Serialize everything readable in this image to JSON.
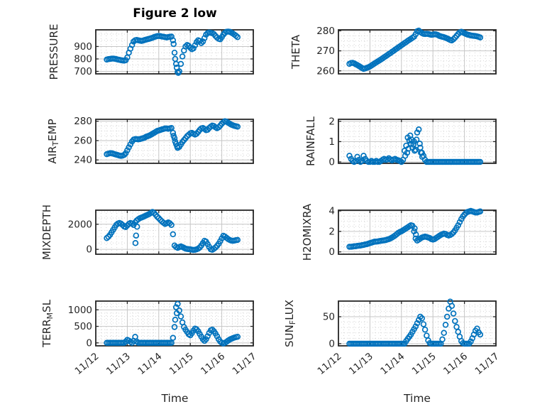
{
  "figure": {
    "title": "Figure 2 low",
    "xlabel": "Time",
    "marker_color": "#0072BD",
    "axis_color": "#262626",
    "grid_major_color": "#c6c6c6",
    "grid_minor_color": "#d6d6d6",
    "background": "#ffffff"
  },
  "x_axis": {
    "ticks": [
      "11/12",
      "11/13",
      "11/14",
      "11/15",
      "11/16",
      "11/17"
    ],
    "lim": [
      12,
      17
    ],
    "minor_per_day": 6
  },
  "x_base": [
    12.35,
    12.4,
    12.45,
    12.5,
    12.55,
    12.6,
    12.65,
    12.7,
    12.75,
    12.8,
    12.85,
    12.9,
    12.95,
    13,
    13.05,
    13.1,
    13.15,
    13.2,
    13.25,
    13.3,
    13.35,
    13.4,
    13.45,
    13.5,
    13.55,
    13.6,
    13.65,
    13.7,
    13.75,
    13.8,
    13.85,
    13.9,
    13.95,
    14,
    14.05,
    14.1,
    14.15,
    14.2,
    14.25,
    14.3,
    14.35,
    14.4,
    14.45,
    14.5,
    14.55,
    14.6,
    14.65,
    14.7,
    14.75,
    14.8,
    14.85,
    14.9,
    14.95,
    15,
    15.05,
    15.1,
    15.15,
    15.2,
    15.25,
    15.3,
    15.35,
    15.4,
    15.45,
    15.5,
    15.55,
    15.6,
    15.65,
    15.7,
    15.75,
    15.8,
    15.85,
    15.9,
    15.95,
    16,
    16.05,
    16.1,
    16.15,
    16.2,
    16.25,
    16.3,
    16.35,
    16.4,
    16.45,
    16.5
  ],
  "chart_data": [
    {
      "id": "pressure",
      "type": "scatter",
      "row": 0,
      "col": 0,
      "ylabel": "PRESSURE",
      "ylabel_parts": [
        {
          "t": "PRESSURE",
          "sub": false
        }
      ],
      "yticks": [
        700,
        800,
        900
      ],
      "ylim": [
        680,
        1034
      ],
      "y_minor_step": 50,
      "x": "base",
      "y": [
        795,
        798,
        800,
        802,
        803,
        801,
        798,
        795,
        793,
        790,
        788,
        786,
        790,
        812,
        850,
        882,
        912,
        940,
        950,
        953,
        950,
        947,
        945,
        948,
        952,
        956,
        959,
        962,
        966,
        970,
        975,
        980,
        983,
        985,
        983,
        980,
        978,
        975,
        973,
        975,
        978,
        980,
        950,
        850,
        760,
        695,
        700,
        760,
        820,
        868,
        900,
        912,
        905,
        890,
        878,
        885,
        910,
        935,
        950,
        945,
        928,
        940,
        968,
        995,
        1008,
        1012,
        1010,
        1007,
        1000,
        985,
        972,
        962,
        958,
        975,
        995,
        1010,
        1018,
        1020,
        1018,
        1012,
        1005,
        996,
        986,
        976
      ],
      "extra": [
        [
          14.47,
          920
        ],
        [
          14.52,
          800
        ],
        [
          14.57,
          730
        ],
        [
          14.62,
          688
        ]
      ]
    },
    {
      "id": "theta",
      "type": "scatter",
      "row": 0,
      "col": 1,
      "ylabel": "THETA",
      "ylabel_parts": [
        {
          "t": "THETA",
          "sub": false
        }
      ],
      "yticks": [
        260,
        270,
        280
      ],
      "ylim": [
        258.5,
        280.5
      ],
      "y_minor_step": 2.5,
      "x": "base",
      "y": [
        263.5,
        263.9,
        264,
        263.7,
        263.3,
        262.9,
        262.4,
        261.9,
        261.4,
        261,
        261.2,
        261.5,
        261.8,
        262.2,
        262.7,
        263.2,
        263.7,
        264.2,
        264.7,
        265.2,
        265.7,
        266.2,
        266.8,
        267.3,
        267.8,
        268.4,
        268.9,
        269.5,
        270,
        270.6,
        271.1,
        271.7,
        272.2,
        272.8,
        273.3,
        273.9,
        274.4,
        275,
        275.5,
        276,
        276.5,
        277.1,
        278.3,
        279.8,
        280.1,
        279.4,
        278.9,
        278.5,
        278.4,
        278.5,
        278.4,
        278.2,
        278,
        278.1,
        278.3,
        278.2,
        277.9,
        277.5,
        277.2,
        277,
        276.8,
        276.5,
        276.2,
        275.8,
        275.4,
        275.2,
        275.8,
        276.6,
        277.5,
        278.4,
        279.2,
        279.5,
        279.2,
        278.8,
        278.4,
        278.1,
        277.9,
        277.7,
        277.6,
        277.5,
        277.4,
        277.2,
        277,
        276.7
      ],
      "extra": []
    },
    {
      "id": "airtemp",
      "type": "scatter",
      "row": 1,
      "col": 0,
      "ylabel": "AIR_TEMP",
      "ylabel_parts": [
        {
          "t": "AIR",
          "sub": false
        },
        {
          "t": "T",
          "sub": true
        },
        {
          "t": "EMP",
          "sub": false
        }
      ],
      "yticks": [
        240,
        260,
        280
      ],
      "ylim": [
        236.5,
        282
      ],
      "y_minor_step": 5,
      "x": "base",
      "y": [
        246,
        246.5,
        247,
        247,
        246.5,
        246,
        245.5,
        245,
        244.5,
        244.2,
        244.5,
        245.2,
        247,
        250,
        253,
        256,
        259,
        261,
        261.5,
        261.5,
        261.2,
        261.5,
        262,
        262.5,
        263,
        264,
        264.5,
        265.2,
        266,
        267,
        268,
        269,
        270,
        270.5,
        271,
        271.5,
        272,
        272.5,
        272.5,
        272.2,
        272.5,
        273,
        268,
        262.5,
        256.5,
        252.5,
        253.5,
        256,
        258.5,
        260.5,
        262.5,
        264.5,
        266,
        267.5,
        268,
        267,
        266.2,
        267,
        269,
        271,
        272.5,
        273,
        272,
        270.8,
        271.2,
        273,
        274.5,
        275.5,
        275,
        273.8,
        272.8,
        273.8,
        275.5,
        277.5,
        279,
        280,
        279.5,
        278.5,
        277.5,
        276.5,
        275.8,
        275.2,
        274.8,
        274.4
      ],
      "extra": [
        [
          14.47,
          265
        ],
        [
          14.52,
          259
        ],
        [
          14.58,
          254
        ]
      ]
    },
    {
      "id": "rainfall",
      "type": "scatter",
      "row": 1,
      "col": 1,
      "ylabel": "RAINFALL",
      "ylabel_parts": [
        {
          "t": "RAINFALL",
          "sub": false
        }
      ],
      "yticks": [
        0,
        1,
        2
      ],
      "ylim": [
        -0.07,
        2.1
      ],
      "y_minor_step": 0.25,
      "x": "base",
      "y": [
        0.3,
        0.15,
        0.05,
        0,
        0.05,
        0.25,
        0.1,
        0,
        0.05,
        0.3,
        0.15,
        0.05,
        0,
        0,
        0.05,
        0,
        0,
        0.05,
        0,
        0,
        0.05,
        0.1,
        0.15,
        0.1,
        0.12,
        0.18,
        0.12,
        0.08,
        0.12,
        0.15,
        0.1,
        0.08,
        0.05,
        0,
        0.1,
        0.55,
        0.8,
        1.2,
        1.05,
        0.9,
        0.7,
        1,
        0.6,
        1.45,
        1.6,
        0.7,
        0.45,
        0.3,
        0.1,
        0,
        0,
        0,
        0,
        0,
        0,
        0,
        0,
        0,
        0,
        0,
        0,
        0,
        0,
        0,
        0,
        0,
        0,
        0,
        0,
        0,
        0,
        0,
        0,
        0,
        0,
        0,
        0,
        0,
        0,
        0,
        0,
        0,
        0,
        0
      ],
      "extra": [
        [
          14.12,
          0.3
        ],
        [
          14.18,
          0.45
        ],
        [
          14.22,
          0.65
        ],
        [
          14.28,
          1.3
        ],
        [
          14.32,
          1.1
        ],
        [
          14.38,
          0.85
        ],
        [
          14.42,
          0.55
        ],
        [
          14.48,
          1.1
        ],
        [
          14.58,
          0.9
        ],
        [
          14.62,
          0.45
        ],
        [
          14.66,
          0.25
        ]
      ]
    },
    {
      "id": "mixdepth",
      "type": "scatter",
      "row": 2,
      "col": 0,
      "ylabel": "MIXDEPTH",
      "ylabel_parts": [
        {
          "t": "MIXDEPTH",
          "sub": false
        }
      ],
      "yticks": [
        0,
        2000
      ],
      "ylim": [
        -390,
        3120
      ],
      "y_minor_step": 500,
      "x": "base",
      "y": [
        900,
        1000,
        1150,
        1350,
        1550,
        1750,
        1950,
        2050,
        2100,
        2050,
        1950,
        1820,
        1780,
        1900,
        2020,
        2100,
        2050,
        1950,
        2150,
        2300,
        2400,
        2480,
        2530,
        2580,
        2640,
        2700,
        2760,
        2820,
        2900,
        2980,
        2900,
        2750,
        2600,
        2480,
        2350,
        2230,
        2120,
        2020,
        2080,
        2140,
        2080,
        1950,
        1200,
        300,
        180,
        120,
        180,
        230,
        180,
        120,
        60,
        30,
        10,
        0,
        -30,
        -50,
        -40,
        0,
        60,
        150,
        300,
        500,
        680,
        620,
        420,
        200,
        0,
        -40,
        50,
        150,
        280,
        450,
        650,
        880,
        1080,
        1020,
        920,
        820,
        750,
        700,
        680,
        700,
        730,
        750
      ],
      "extra": [
        [
          13.26,
          500
        ],
        [
          13.28,
          1100
        ],
        [
          13.31,
          1800
        ]
      ]
    },
    {
      "id": "h2omixra",
      "type": "scatter",
      "row": 2,
      "col": 1,
      "ylabel": "H2OMIXRA",
      "ylabel_parts": [
        {
          "t": "H2OMIXRA",
          "sub": false
        }
      ],
      "yticks": [
        0,
        2,
        4
      ],
      "ylim": [
        -0.23,
        4.07
      ],
      "y_minor_step": 0.5,
      "x": "base",
      "y": [
        0.5,
        0.5,
        0.52,
        0.55,
        0.55,
        0.58,
        0.6,
        0.62,
        0.65,
        0.68,
        0.72,
        0.75,
        0.8,
        0.85,
        0.9,
        0.95,
        1,
        1,
        1.02,
        1.05,
        1.08,
        1.1,
        1.12,
        1.15,
        1.2,
        1.25,
        1.32,
        1.4,
        1.5,
        1.6,
        1.72,
        1.85,
        1.95,
        2,
        2.1,
        2.2,
        2.3,
        2.4,
        2.5,
        2.6,
        2.55,
        2,
        1.3,
        1.1,
        1.2,
        1.3,
        1.4,
        1.45,
        1.5,
        1.45,
        1.4,
        1.35,
        1.25,
        1.2,
        1.25,
        1.35,
        1.45,
        1.55,
        1.65,
        1.72,
        1.78,
        1.75,
        1.65,
        1.6,
        1.65,
        1.75,
        1.9,
        2.1,
        2.35,
        2.6,
        2.9,
        3.2,
        3.45,
        3.65,
        3.8,
        3.9,
        3.95,
        4,
        3.95,
        3.9,
        3.85,
        3.85,
        3.9,
        3.95
      ],
      "extra": [
        [
          14.42,
          2.3
        ],
        [
          14.46,
          1.7
        ]
      ]
    },
    {
      "id": "terrmsl",
      "type": "scatter",
      "row": 3,
      "col": 0,
      "ylabel": "TERR_MSL",
      "ylabel_parts": [
        {
          "t": "TERR",
          "sub": false
        },
        {
          "t": "M",
          "sub": true
        },
        {
          "t": "SL",
          "sub": false
        }
      ],
      "yticks": [
        0,
        500,
        1000
      ],
      "ylim": [
        -90,
        1265
      ],
      "y_minor_step": 100,
      "x": "base",
      "y": [
        0,
        0,
        0,
        0,
        0,
        0,
        0,
        0,
        0,
        0,
        0,
        0,
        40,
        90,
        70,
        30,
        0,
        60,
        180,
        40,
        0,
        0,
        0,
        0,
        0,
        0,
        0,
        0,
        0,
        0,
        0,
        0,
        0,
        0,
        0,
        0,
        0,
        0,
        0,
        0,
        0,
        0,
        150,
        480,
        1080,
        1180,
        980,
        800,
        620,
        480,
        400,
        330,
        260,
        230,
        290,
        370,
        430,
        410,
        350,
        270,
        190,
        110,
        60,
        110,
        200,
        300,
        380,
        400,
        350,
        280,
        200,
        110,
        40,
        0,
        -20,
        0,
        30,
        70,
        100,
        120,
        140,
        160,
        175,
        185
      ],
      "extra": [
        [
          14.52,
          700
        ],
        [
          14.57,
          900
        ]
      ]
    },
    {
      "id": "sunflux",
      "type": "scatter",
      "row": 3,
      "col": 1,
      "ylabel": "SUN_FLUX",
      "ylabel_parts": [
        {
          "t": "SUN",
          "sub": false
        },
        {
          "t": "F",
          "sub": true
        },
        {
          "t": "LUX",
          "sub": false
        }
      ],
      "yticks": [
        0,
        50
      ],
      "ylim": [
        -4,
        79
      ],
      "y_minor_step": 10,
      "x": "base",
      "y": [
        0,
        0,
        0,
        0,
        0,
        0,
        0,
        0,
        0,
        0,
        0,
        0,
        0,
        0,
        0,
        0,
        0,
        0,
        0,
        0,
        0,
        0,
        0,
        0,
        0,
        0,
        0,
        0,
        0,
        0,
        0,
        0,
        0,
        0,
        0,
        0,
        5,
        9,
        13,
        17,
        22,
        27,
        32,
        38,
        44,
        50,
        47,
        36,
        26,
        15,
        6,
        1,
        0,
        0,
        0,
        0,
        0,
        0,
        0,
        8,
        20,
        35,
        50,
        65,
        78,
        70,
        56,
        42,
        31,
        22,
        13,
        5,
        1,
        0,
        0,
        0,
        0,
        4,
        10,
        17,
        24,
        28,
        21,
        17
      ],
      "extra": []
    }
  ]
}
